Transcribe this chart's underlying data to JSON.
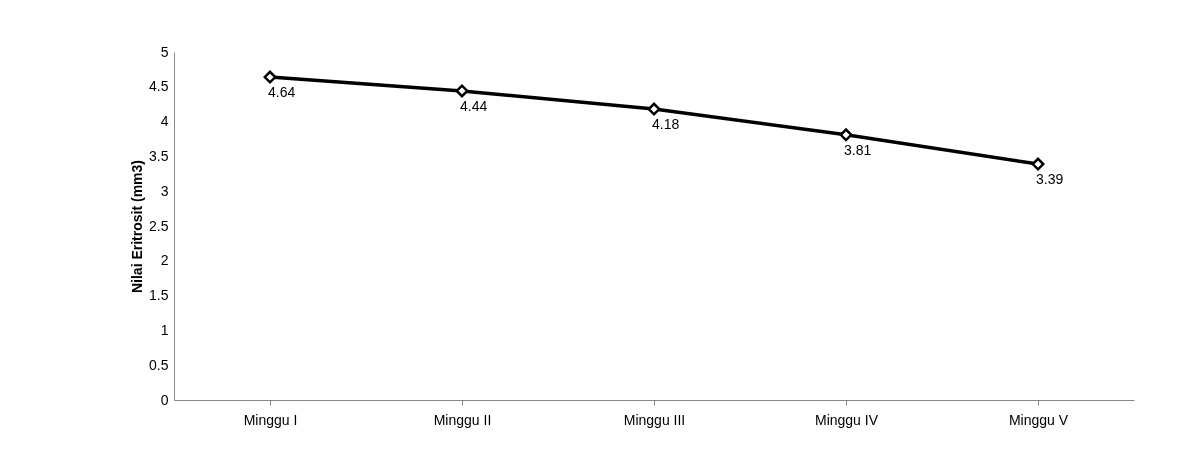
{
  "chart_data": {
    "type": "line",
    "ylabel": "Nilai Eritrosit (mm3)",
    "categories": [
      "Minggu  I",
      "Minggu II",
      "Minggu III",
      "Minggu IV",
      "Minggu V"
    ],
    "series": [
      {
        "color": "#000000",
        "values": [
          4.64,
          4.44,
          4.18,
          3.81,
          3.39
        ]
      }
    ],
    "ylim": [
      0,
      5
    ],
    "yticks": [
      0,
      0.5,
      1,
      1.5,
      2,
      2.5,
      3,
      3.5,
      4,
      4.5,
      5
    ],
    "grid": false,
    "marker": "diamond",
    "line_style": "solid",
    "data_labels": true
  }
}
